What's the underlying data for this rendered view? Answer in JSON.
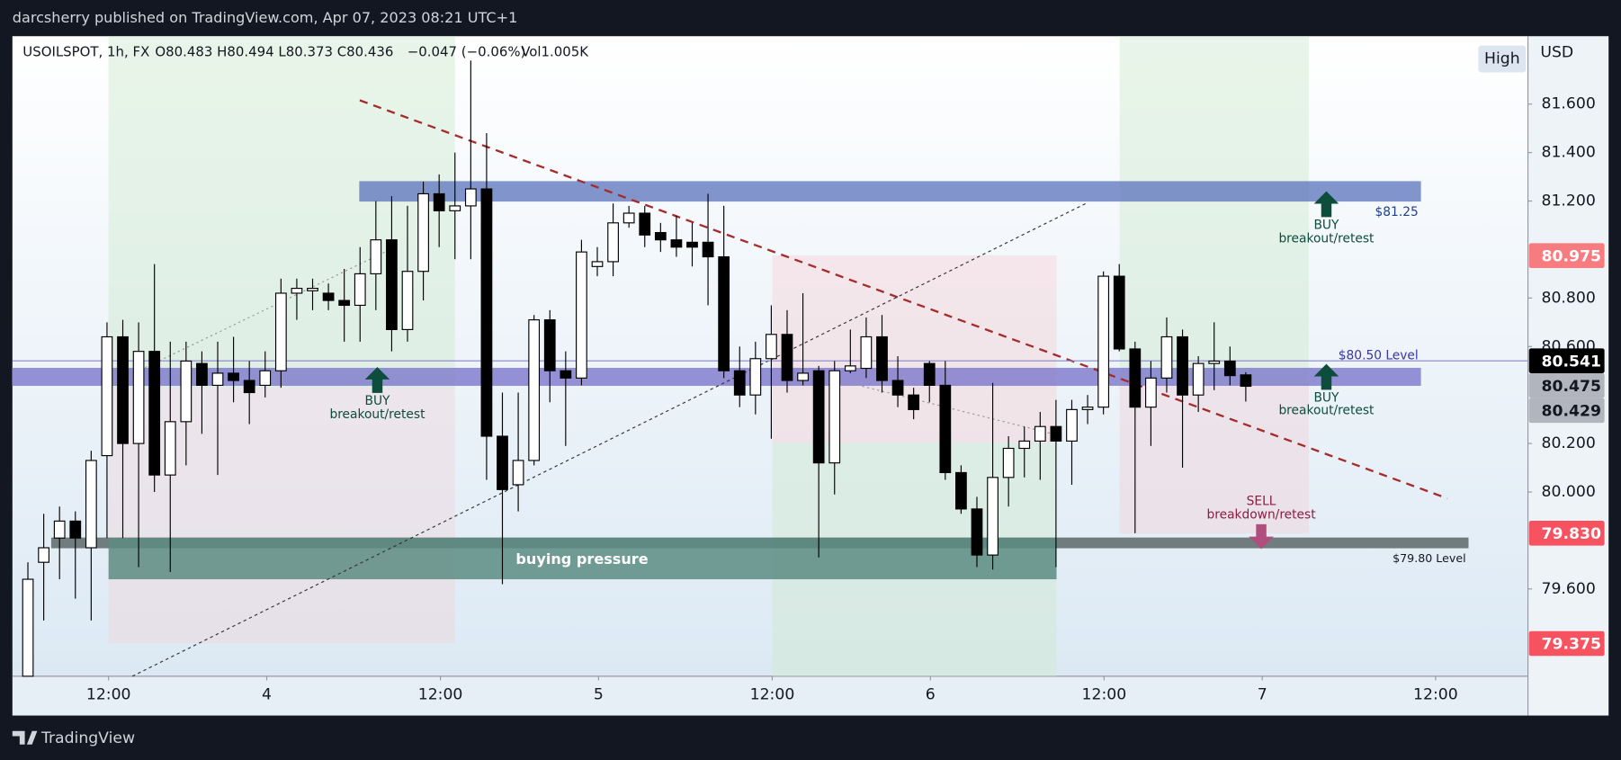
{
  "header": {
    "publisher": "darcsherry published on TradingView.com, Apr 07, 2023 08:21 UTC+1",
    "brand": "TradingView"
  },
  "chart_data": {
    "type": "candlestick",
    "symbol": "USOILSPOT, 1h, FX",
    "ohlc_text": "O80.483  H80.494  L80.373  C80.436",
    "change_text": "−0.047 (−0.06%)",
    "volume_text": "Vol1.005K",
    "currency": "USD",
    "range_button": "High",
    "x": [
      0,
      1,
      2,
      3,
      4,
      5,
      6,
      7,
      8,
      9,
      10,
      11,
      12,
      13,
      14,
      15,
      16,
      17,
      18,
      19,
      20,
      21,
      22,
      23,
      24,
      25,
      26,
      27,
      28,
      29,
      30,
      31,
      32,
      33,
      34,
      35,
      36,
      37,
      38,
      39,
      40,
      41,
      42,
      43,
      44,
      45,
      46,
      47,
      48,
      49,
      50,
      51,
      52,
      53,
      54,
      55,
      56,
      57,
      58,
      59,
      60,
      61,
      62,
      63,
      64,
      65,
      66,
      67,
      68,
      69,
      70,
      71,
      72,
      73,
      74,
      75,
      76,
      77
    ],
    "open": [
      79.24,
      79.71,
      79.81,
      79.88,
      79.77,
      80.15,
      80.64,
      80.2,
      80.58,
      80.07,
      80.29,
      80.53,
      80.44,
      80.49,
      80.46,
      80.44,
      80.5,
      80.82,
      80.83,
      80.82,
      80.79,
      80.77,
      80.9,
      81.04,
      80.67,
      80.91,
      81.23,
      81.16,
      81.18,
      81.25,
      80.23,
      80.03,
      80.13,
      80.71,
      80.5,
      80.47,
      80.93,
      80.95,
      81.11,
      81.15,
      81.07,
      81.04,
      81.03,
      81.03,
      80.97,
      80.5,
      80.4,
      80.55,
      80.65,
      80.46,
      80.5,
      80.12,
      80.5,
      80.51,
      80.64,
      80.46,
      80.4,
      80.53,
      80.44,
      80.08,
      79.93,
      79.74,
      80.06,
      80.18,
      80.21,
      80.27,
      80.21,
      80.34,
      80.35,
      80.89,
      80.59,
      80.35,
      80.47,
      80.64,
      80.4,
      80.53,
      80.54,
      80.483
    ],
    "high": [
      79.71,
      79.91,
      79.94,
      79.92,
      80.17,
      80.7,
      80.71,
      80.7,
      80.94,
      80.62,
      80.62,
      80.58,
      80.62,
      80.64,
      80.54,
      80.58,
      80.88,
      80.88,
      80.88,
      80.86,
      80.92,
      81.01,
      81.2,
      81.22,
      81.18,
      81.28,
      81.31,
      81.4,
      81.78,
      81.48,
      80.41,
      80.41,
      80.73,
      80.75,
      80.58,
      81.04,
      81.01,
      81.19,
      81.18,
      81.18,
      81.11,
      81.14,
      81.11,
      81.23,
      81.18,
      80.6,
      80.62,
      80.77,
      80.75,
      80.82,
      80.52,
      80.54,
      80.67,
      80.72,
      80.73,
      80.56,
      80.43,
      80.54,
      80.54,
      80.11,
      79.98,
      80.45,
      80.23,
      80.27,
      80.33,
      80.38,
      80.38,
      80.4,
      80.91,
      80.94,
      80.62,
      80.54,
      80.72,
      80.67,
      80.56,
      80.7,
      80.6,
      80.494
    ],
    "low": [
      79.24,
      79.47,
      79.64,
      79.56,
      79.47,
      79.81,
      79.81,
      79.69,
      80.0,
      79.67,
      80.11,
      80.24,
      80.07,
      80.37,
      80.28,
      80.39,
      80.43,
      80.71,
      80.75,
      80.75,
      80.62,
      80.62,
      80.75,
      80.58,
      80.62,
      80.79,
      81.01,
      80.96,
      80.96,
      80.05,
      79.62,
      79.92,
      80.11,
      80.37,
      80.19,
      80.44,
      80.89,
      80.89,
      81.09,
      81.01,
      80.99,
      80.97,
      80.93,
      80.77,
      80.47,
      80.35,
      80.32,
      80.22,
      80.41,
      80.44,
      79.73,
      79.99,
      80.49,
      80.47,
      80.41,
      80.35,
      80.3,
      80.37,
      80.05,
      79.91,
      79.69,
      79.68,
      79.94,
      80.06,
      80.05,
      79.69,
      80.03,
      80.28,
      80.32,
      80.58,
      79.83,
      80.19,
      80.41,
      80.1,
      80.33,
      80.42,
      80.44,
      80.373
    ],
    "close": [
      79.64,
      79.77,
      79.88,
      79.81,
      80.13,
      80.64,
      80.2,
      80.58,
      80.07,
      80.29,
      80.54,
      80.44,
      80.49,
      80.46,
      80.41,
      80.5,
      80.82,
      80.84,
      80.84,
      80.79,
      80.77,
      80.9,
      81.04,
      80.67,
      80.91,
      81.23,
      81.16,
      81.18,
      81.25,
      80.23,
      80.01,
      80.13,
      80.71,
      80.5,
      80.47,
      80.99,
      80.95,
      81.11,
      81.15,
      81.06,
      81.04,
      81.01,
      81.01,
      80.97,
      80.5,
      80.4,
      80.55,
      80.65,
      80.46,
      80.49,
      80.12,
      80.5,
      80.52,
      80.64,
      80.46,
      80.4,
      80.34,
      80.44,
      80.08,
      79.93,
      79.74,
      80.06,
      80.18,
      80.21,
      80.27,
      80.21,
      80.34,
      80.35,
      80.89,
      80.59,
      80.35,
      80.47,
      80.64,
      80.4,
      80.53,
      80.54,
      80.48,
      80.436
    ],
    "up_color": "#ffffff",
    "down_color": "#000000",
    "xlim": [
      -0.98,
      94.84
    ],
    "xticks": [
      {
        "value": 5.1,
        "label": "12:00"
      },
      {
        "value": 15.1,
        "label": "4"
      },
      {
        "value": 26.08,
        "label": "12:00"
      },
      {
        "value": 36.08,
        "label": "5"
      },
      {
        "value": 47.06,
        "label": "12:00"
      },
      {
        "value": 57.06,
        "label": "6"
      },
      {
        "value": 68.04,
        "label": "12:00"
      },
      {
        "value": 78.04,
        "label": "7"
      },
      {
        "value": 89.0,
        "label": "12:00"
      }
    ],
    "ylim": [
      79.24,
      81.88
    ],
    "yticks": [
      {
        "value": 81.6,
        "label": "81.600"
      },
      {
        "value": 81.4,
        "label": "81.400"
      },
      {
        "value": 81.2,
        "label": "81.200"
      },
      {
        "value": 80.8,
        "label": "80.800"
      },
      {
        "value": 80.6,
        "label": "80.600"
      },
      {
        "value": 80.2,
        "label": "80.200"
      },
      {
        "value": 80.0,
        "label": "80.000"
      },
      {
        "value": 79.6,
        "label": "79.600"
      }
    ],
    "grid": false,
    "price_labels": [
      {
        "value": 80.975,
        "label": "80.975",
        "color": "#f77c80"
      },
      {
        "value": 80.541,
        "label": "80.541",
        "color": "#000000"
      },
      {
        "value": 80.475,
        "label": "80.475",
        "color": "#b2b5be"
      },
      {
        "value": 80.429,
        "label": "80.429",
        "color": "#b2b5be"
      },
      {
        "value": 79.83,
        "label": "79.830",
        "color": "#f7525f"
      },
      {
        "value": 79.375,
        "label": "79.375",
        "color": "#f7525f"
      }
    ],
    "levels": [
      {
        "label": "$81.25",
        "top": 81.28,
        "bottom": 81.2,
        "color": "#5b73bd"
      },
      {
        "label": "$80.50 Level",
        "top": 80.51,
        "bottom": 80.44,
        "color": "#7670c9"
      },
      {
        "label": "$79.80 Level",
        "top": 79.81,
        "bottom": 79.77,
        "color": "#4a5656"
      }
    ],
    "zone": {
      "label": "buying pressure",
      "top": 79.81,
      "bottom": 79.64,
      "color": "#5c8c82"
    },
    "signals": [
      {
        "action": "BUY",
        "note": "breakout/retest"
      },
      {
        "action": "BUY",
        "note": "breakout/retest"
      },
      {
        "action": "BUY",
        "note": "breakout/retest"
      },
      {
        "action": "SELL",
        "note": "breakdown/retest"
      }
    ]
  }
}
